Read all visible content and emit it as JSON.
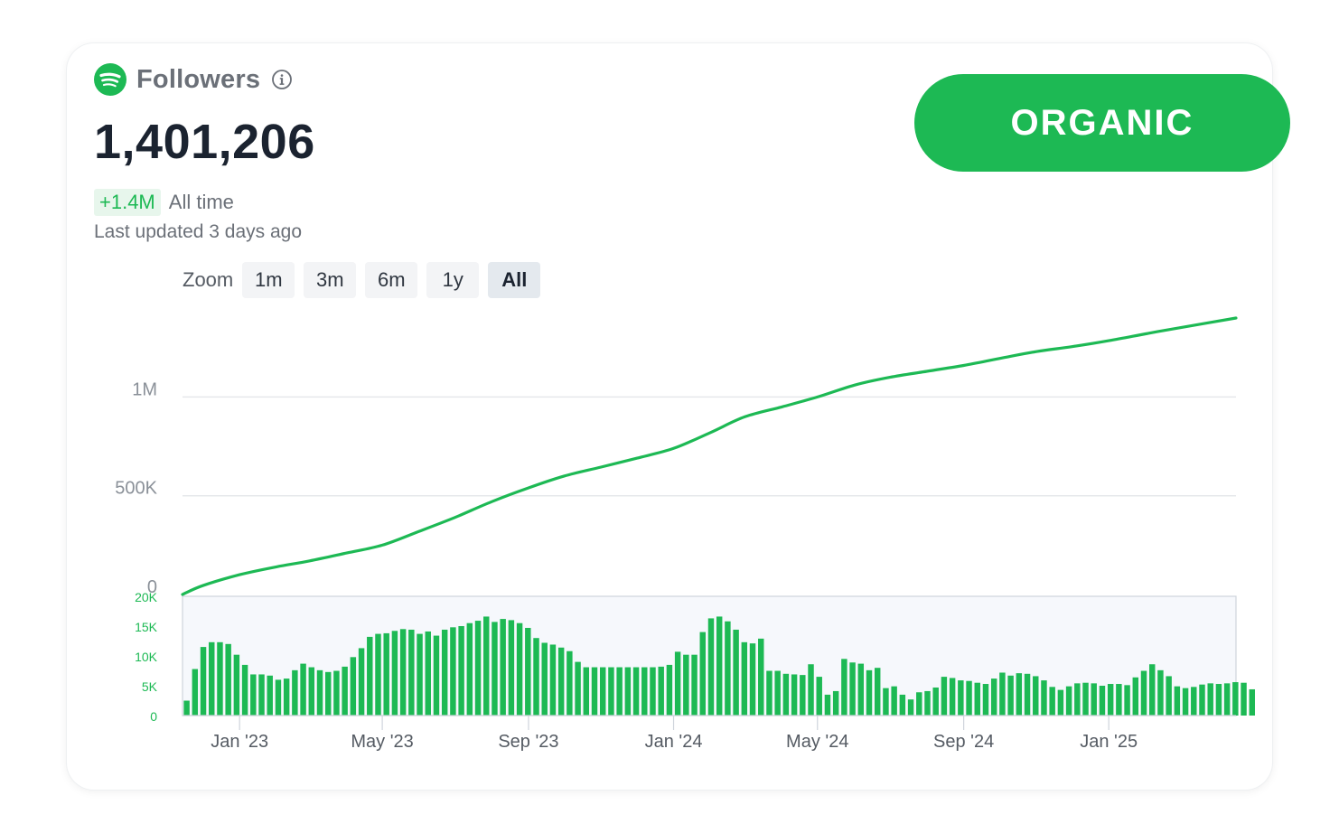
{
  "header": {
    "title": "Followers",
    "value": "1,401,206",
    "change": "+1.4M",
    "change_period": "All time",
    "last_updated": "Last updated 3 days ago",
    "logo_icon": "spotify-logo-icon",
    "info_icon": "info-icon"
  },
  "zoom": {
    "label": "Zoom",
    "options": [
      "1m",
      "3m",
      "6m",
      "1y",
      "All"
    ],
    "selected": "All"
  },
  "badge": {
    "label": "ORGANIC"
  },
  "colors": {
    "accent": "#1db954",
    "grid": "#e6e8eb",
    "text": "#1b2330"
  },
  "chart_data": [
    {
      "type": "line",
      "y_tick_labels": [
        "0",
        "500K",
        "1M"
      ],
      "y_ticks": [
        0,
        500000,
        1000000
      ],
      "ylim": [
        0,
        1400000
      ],
      "xlim": [
        "2022-11-14",
        "2025-04-18"
      ],
      "x": [
        "2022-11-14",
        "2022-12-01",
        "2023-01-01",
        "2023-02-01",
        "2023-03-01",
        "2023-04-01",
        "2023-05-01",
        "2023-06-01",
        "2023-07-01",
        "2023-08-01",
        "2023-09-01",
        "2023-10-01",
        "2023-11-01",
        "2023-12-01",
        "2024-01-01",
        "2024-02-01",
        "2024-03-01",
        "2024-04-01",
        "2024-05-01",
        "2024-06-01",
        "2024-07-01",
        "2024-08-01",
        "2024-09-01",
        "2024-10-01",
        "2024-11-01",
        "2024-12-01",
        "2025-01-01",
        "2025-02-01",
        "2025-03-01",
        "2025-04-18"
      ],
      "values": [
        0,
        45000,
        100000,
        140000,
        170000,
        210000,
        250000,
        320000,
        390000,
        470000,
        540000,
        600000,
        645000,
        690000,
        740000,
        820000,
        900000,
        950000,
        1000000,
        1060000,
        1100000,
        1130000,
        1160000,
        1195000,
        1230000,
        1255000,
        1285000,
        1320000,
        1350000,
        1400000
      ]
    },
    {
      "type": "bar",
      "y_tick_labels": [
        "0",
        "5K",
        "10K",
        "15K",
        "20K"
      ],
      "y_ticks": [
        0,
        5000,
        10000,
        15000,
        20000
      ],
      "ylim": [
        0,
        20000
      ],
      "x_tick_labels": [
        "Jan '23",
        "May '23",
        "Sep '23",
        "Jan '24",
        "May '24",
        "Sep '24",
        "Jan '25"
      ],
      "x_ticks": [
        "2023-01-01",
        "2023-05-01",
        "2023-09-01",
        "2024-01-01",
        "2024-05-01",
        "2024-09-01",
        "2025-01-01"
      ],
      "bar_start": "2022-11-14",
      "bar_interval_days": 7,
      "values": [
        2500,
        7800,
        11500,
        12300,
        12300,
        12000,
        10200,
        8500,
        6900,
        6900,
        6700,
        6000,
        6200,
        7600,
        8700,
        8100,
        7600,
        7300,
        7500,
        8200,
        9800,
        11300,
        13200,
        13700,
        13800,
        14200,
        14500,
        14400,
        13700,
        14100,
        13400,
        14400,
        14800,
        15000,
        15500,
        15900,
        16600,
        15700,
        16200,
        16000,
        15500,
        14700,
        13000,
        12200,
        11900,
        11400,
        10800,
        9000,
        8100,
        8100,
        8100,
        8100,
        8100,
        8100,
        8100,
        8100,
        8100,
        8200,
        8500,
        10700,
        10200,
        10200,
        14000,
        16300,
        16600,
        15800,
        14400,
        12300,
        12100,
        12900,
        7500,
        7500,
        7000,
        6900,
        6800,
        8600,
        6500,
        3500,
        4100,
        9500,
        8900,
        8700,
        7600,
        8000,
        4600,
        4900,
        3500,
        2700,
        3900,
        4100,
        4700,
        6500,
        6300,
        5900,
        5800,
        5500,
        5300,
        6200,
        7200,
        6700,
        7100,
        7000,
        6600,
        5900,
        4800,
        4300,
        4900,
        5400,
        5500,
        5400,
        5000,
        5300,
        5300,
        5100,
        6400,
        7500,
        8600,
        7600,
        6600,
        4900,
        4600,
        4800,
        5200,
        5400,
        5300,
        5400,
        5600,
        5500,
        4400
      ]
    }
  ]
}
